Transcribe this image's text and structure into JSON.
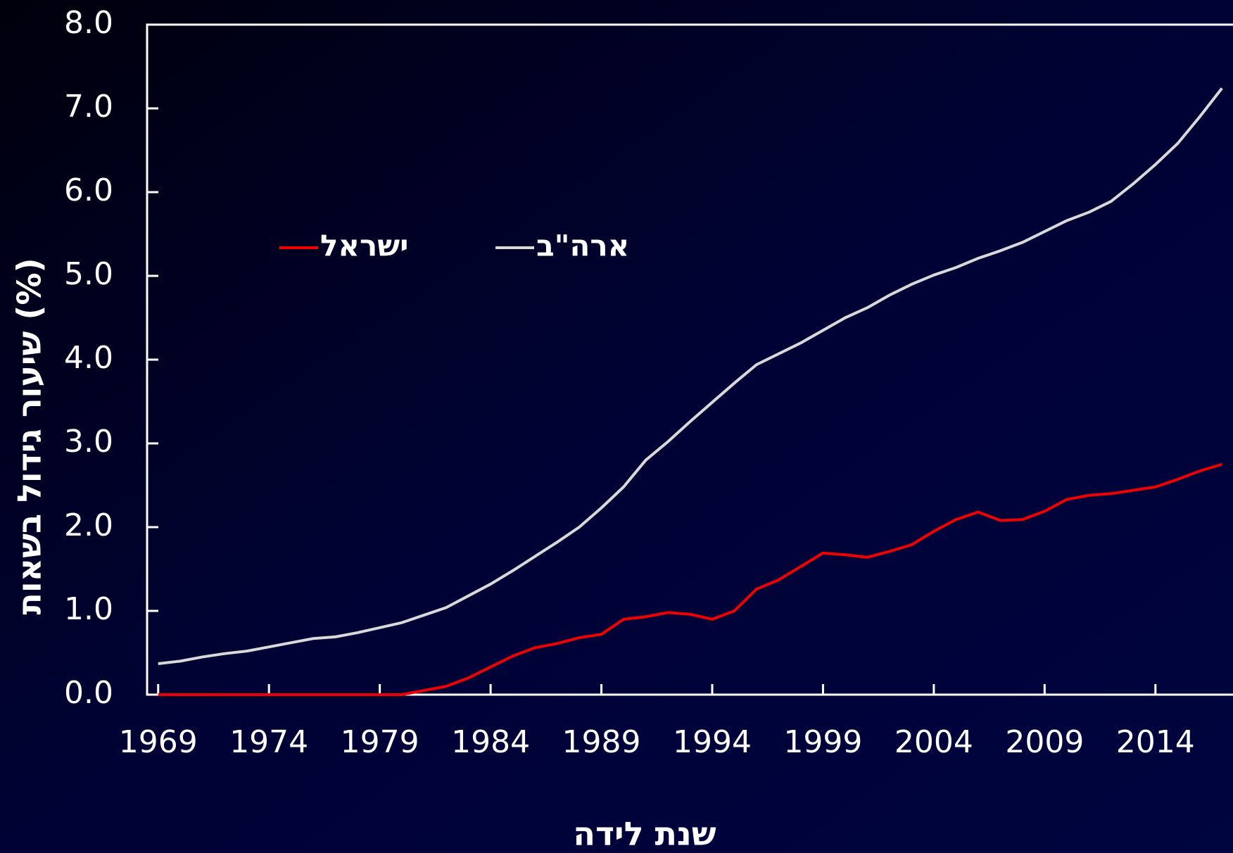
{
  "chart_data": {
    "type": "line",
    "xlabel": "שנת לידה",
    "ylabel": "שיעור גידול בשאות (%)",
    "x": [
      1969,
      1970,
      1971,
      1972,
      1973,
      1974,
      1975,
      1976,
      1977,
      1978,
      1979,
      1980,
      1981,
      1982,
      1983,
      1984,
      1985,
      1986,
      1987,
      1988,
      1989,
      1990,
      1991,
      1992,
      1993,
      1994,
      1995,
      1996,
      1997,
      1998,
      1999,
      2000,
      2001,
      2002,
      2003,
      2004,
      2005,
      2006,
      2007,
      2008,
      2009,
      2010,
      2011,
      2012,
      2013,
      2014,
      2015,
      2016,
      2017
    ],
    "series": [
      {
        "name": "ישראל",
        "color": "#ee0000",
        "values": [
          0,
          0,
          0,
          0,
          0,
          0,
          0,
          0,
          0,
          0,
          0,
          0,
          0.05,
          0.1,
          0.2,
          0.33,
          0.46,
          0.56,
          0.61,
          0.68,
          0.72,
          0.9,
          0.93,
          0.98,
          0.96,
          0.9,
          1.0,
          1.26,
          1.37,
          1.53,
          1.69,
          1.67,
          1.64,
          1.71,
          1.79,
          1.95,
          2.09,
          2.18,
          2.08,
          2.09,
          2.19,
          2.33,
          2.38,
          2.4,
          2.44,
          2.48,
          2.57,
          2.67,
          2.75
        ]
      },
      {
        "name": "ארה\"ב",
        "color": "#d9d9d9",
        "values": [
          0.37,
          0.4,
          0.45,
          0.49,
          0.52,
          0.57,
          0.62,
          0.67,
          0.69,
          0.74,
          0.8,
          0.86,
          0.95,
          1.04,
          1.18,
          1.32,
          1.48,
          1.65,
          1.82,
          2.0,
          2.23,
          2.48,
          2.8,
          3.02,
          3.26,
          3.49,
          3.72,
          3.94,
          4.07,
          4.2,
          4.35,
          4.5,
          4.62,
          4.77,
          4.9,
          5.01,
          5.1,
          5.21,
          5.3,
          5.4,
          5.53,
          5.66,
          5.76,
          5.89,
          6.1,
          6.33,
          6.58,
          6.9,
          7.24
        ]
      }
    ],
    "xlim": [
      1968.5,
      2017.5
    ],
    "xticks": [
      1969,
      1974,
      1979,
      1984,
      1989,
      1994,
      1999,
      2004,
      2009,
      2014
    ],
    "ylim": [
      0,
      8
    ],
    "yticks": [
      {
        "value": 0,
        "label": "0.0"
      },
      {
        "value": 1,
        "label": "1.0"
      },
      {
        "value": 2,
        "label": "2.0"
      },
      {
        "value": 3,
        "label": "3.0"
      },
      {
        "value": 4,
        "label": "4.0"
      },
      {
        "value": 5,
        "label": "5.0"
      },
      {
        "value": 6,
        "label": "6.0"
      },
      {
        "value": 7,
        "label": "7.0"
      },
      {
        "value": 8,
        "label": "8.0"
      }
    ]
  }
}
